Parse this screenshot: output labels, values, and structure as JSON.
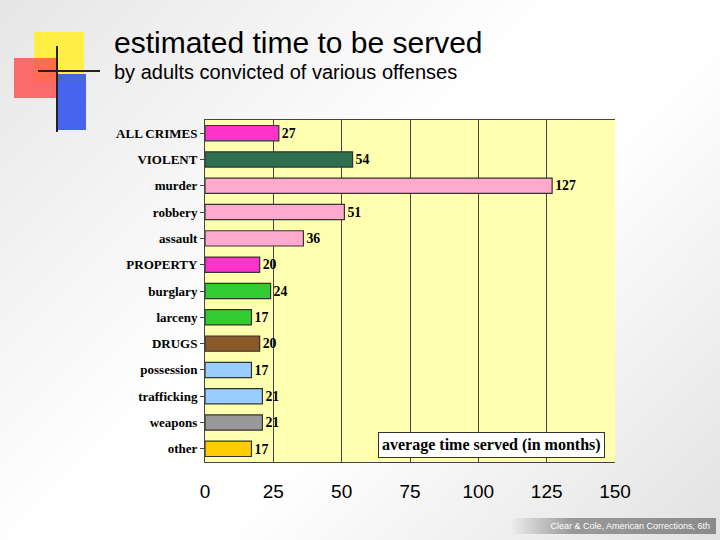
{
  "chart_data": {
    "type": "bar",
    "title": "estimated time to be served",
    "subtitle": "by adults convicted of various offenses",
    "orientation": "horizontal",
    "categories": [
      "ALL CRIMES",
      "VIOLENT",
      "murder",
      "robbery",
      "assault",
      "PROPERTY",
      "burglary",
      "larceny",
      "DRUGS",
      "possession",
      "trafficking",
      "weapons",
      "other"
    ],
    "values": [
      27,
      54,
      127,
      51,
      36,
      20,
      24,
      17,
      20,
      17,
      21,
      21,
      17
    ],
    "colors": [
      "#ff33cc",
      "#2f6f4f",
      "#ffaacc",
      "#ffaacc",
      "#ffaacc",
      "#ff33cc",
      "#33cc33",
      "#33cc33",
      "#8b5a2b",
      "#99ccff",
      "#99ccff",
      "#999999",
      "#ffcc00"
    ],
    "xlim": [
      0,
      150
    ],
    "xticks": [
      0,
      25,
      50,
      75,
      100,
      125,
      150
    ],
    "grid": true,
    "data_labels": true,
    "annotations": [
      "average time served (in months)"
    ],
    "source": "Clear & Cole, American Corrections, 6th"
  }
}
